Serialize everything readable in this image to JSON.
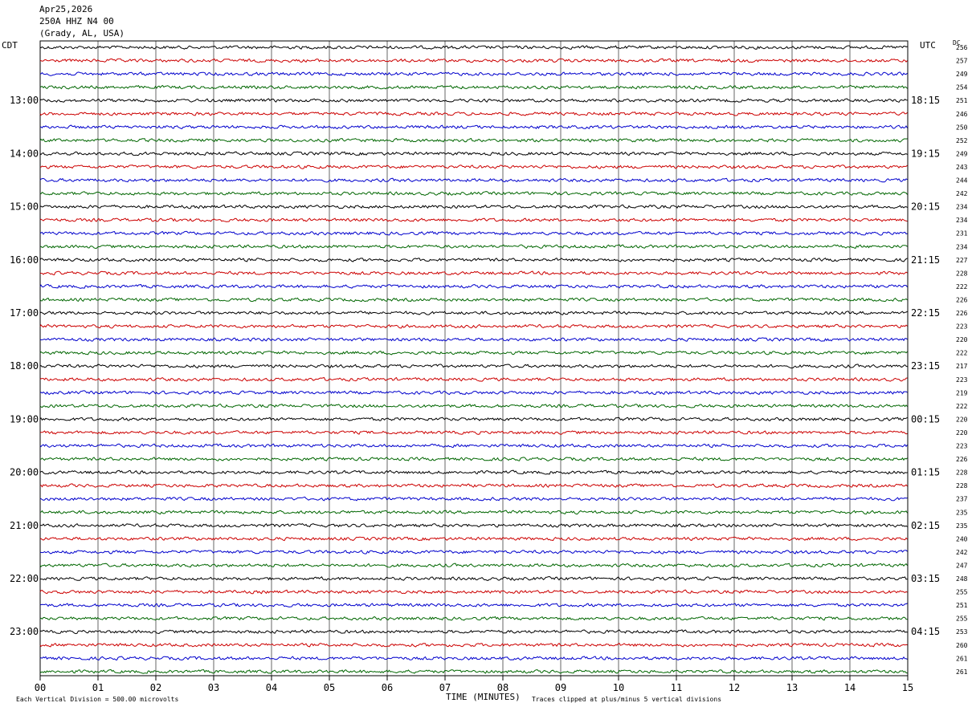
{
  "header": {
    "date": "Apr25,2026",
    "channel": "250A HHZ N4 00",
    "location": "(Grady, AL, USA)"
  },
  "left_axis_label": "CDT",
  "right_axis_label": "UTC",
  "dc_label": "DC",
  "footer": {
    "scale_note": "Each Vertical Division =  500.00 microvolts",
    "xlabel": "TIME (MINUTES)",
    "clip_note": "Traces clipped at plus/minus 5 vertical divisions"
  },
  "colors": {
    "trace_cycle": [
      "#000000",
      "#cc0000",
      "#0000cc",
      "#006600"
    ],
    "grid": "#000000"
  },
  "chart_data": {
    "type": "line",
    "title": "",
    "xlabel": "TIME (MINUTES)",
    "xlim": [
      0,
      15
    ],
    "x_ticks": [
      "00",
      "01",
      "02",
      "03",
      "04",
      "05",
      "06",
      "07",
      "08",
      "09",
      "10",
      "11",
      "12",
      "13",
      "14",
      "15"
    ],
    "row_count": 48,
    "left_hour_labels": [
      {
        "row": 4,
        "label": "13:00"
      },
      {
        "row": 8,
        "label": "14:00"
      },
      {
        "row": 12,
        "label": "15:00"
      },
      {
        "row": 16,
        "label": "16:00"
      },
      {
        "row": 20,
        "label": "17:00"
      },
      {
        "row": 24,
        "label": "18:00"
      },
      {
        "row": 28,
        "label": "19:00"
      },
      {
        "row": 32,
        "label": "20:00"
      },
      {
        "row": 36,
        "label": "21:00"
      },
      {
        "row": 40,
        "label": "22:00"
      },
      {
        "row": 44,
        "label": "23:00"
      }
    ],
    "right_hour_labels": [
      {
        "row": 4,
        "label": "18:15"
      },
      {
        "row": 8,
        "label": "19:15"
      },
      {
        "row": 12,
        "label": "20:15"
      },
      {
        "row": 16,
        "label": "21:15"
      },
      {
        "row": 20,
        "label": "22:15"
      },
      {
        "row": 24,
        "label": "23:15"
      },
      {
        "row": 28,
        "label": "00:15"
      },
      {
        "row": 32,
        "label": "01:15"
      },
      {
        "row": 36,
        "label": "02:15"
      },
      {
        "row": 40,
        "label": "03:15"
      },
      {
        "row": 44,
        "label": "04:15"
      }
    ],
    "dc_offsets": [
      256,
      257,
      249,
      254,
      251,
      246,
      250,
      252,
      249,
      243,
      244,
      242,
      234,
      234,
      231,
      234,
      227,
      228,
      222,
      226,
      226,
      223,
      220,
      222,
      217,
      223,
      219,
      222,
      220,
      220,
      223,
      226,
      228,
      228,
      237,
      235,
      235,
      240,
      242,
      247,
      248,
      255,
      251,
      255,
      253,
      260,
      261,
      261
    ],
    "series_colors": [
      "#000000",
      "#cc0000",
      "#0000cc",
      "#006600"
    ]
  }
}
